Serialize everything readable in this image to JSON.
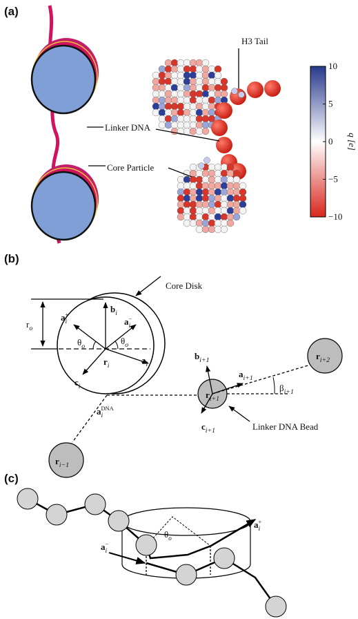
{
  "panel_a": {
    "label": "(a)",
    "callouts": [
      "H3 Tail",
      "Linker DNA",
      "Core Particle"
    ],
    "colorbar": {
      "label": "q [e]",
      "range": [
        -10,
        10
      ],
      "ticks": [
        10,
        5,
        0,
        {
          "value": -5,
          "label": "−5"
        },
        {
          "value": -10,
          "label": "−10"
        }
      ]
    }
  },
  "panel_b": {
    "label": "(b)",
    "callouts": [
      "Core Disk",
      "Linker DNA Bead"
    ],
    "symbols": {
      "r_o": {
        "base": "r",
        "sub": "o"
      },
      "a_plus": {
        "base": "a",
        "sub": "i",
        "sup": "+"
      },
      "b_i": {
        "base": "b",
        "sub": "i"
      },
      "a_minus": {
        "base": "a",
        "sub": "i",
        "sup": "−"
      },
      "theta_left": {
        "base": "θ",
        "sub": "o"
      },
      "theta_right": {
        "base": "θ",
        "sub": "o"
      },
      "r_i": {
        "base": "r",
        "sub": "i"
      },
      "a_i": {
        "base": "a",
        "sub": "i"
      },
      "c_i": {
        "base": "c",
        "sub": "i"
      },
      "a_dna": {
        "base": "a",
        "sub": "i",
        "sup": "DNA"
      },
      "b_next": {
        "base": "b",
        "sub": "i+1"
      },
      "r_next": {
        "base": "r",
        "sub": "i+1"
      },
      "a_next": {
        "base": "a",
        "sub": "i+1"
      },
      "beta_next": {
        "base": "β",
        "sub": "i+1"
      },
      "r_next2": {
        "base": "r",
        "sub": "i+2"
      },
      "c_next": {
        "base": "c",
        "sub": "i+1"
      },
      "r_prev": {
        "base": "r",
        "sub": "i−1"
      }
    }
  },
  "panel_c": {
    "label": "(c)",
    "symbols": {
      "theta": {
        "base": "θ",
        "sub": "o"
      },
      "a_plus": {
        "base": "a",
        "sub": "i",
        "sup": "+"
      },
      "a_minus": {
        "base": "a",
        "sub": "i",
        "sup": "−"
      }
    }
  }
}
